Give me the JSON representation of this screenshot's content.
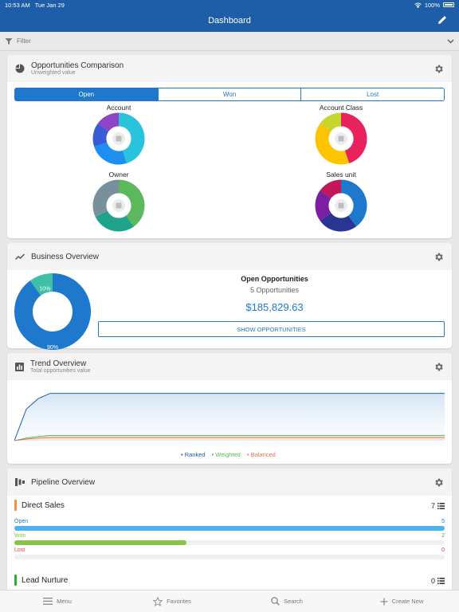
{
  "status": {
    "time": "10:53 AM",
    "date": "Tue Jan 29",
    "battery": "100%"
  },
  "nav": {
    "title": "Dashboard"
  },
  "filter": {
    "label": "Filter"
  },
  "opportunities": {
    "title": "Opportunities Comparison",
    "subtitle": "Unweighted value",
    "tabs": [
      "Open",
      "Won",
      "Lost"
    ],
    "selected_tab": "Open",
    "donuts": [
      {
        "label": "Account",
        "icon": "building-icon",
        "segments": [
          {
            "value": 45,
            "color": "#29c3dd"
          },
          {
            "value": 25,
            "color": "#1e8ef0"
          },
          {
            "value": 15,
            "color": "#3b5bd6"
          },
          {
            "value": 15,
            "color": "#8e44c6"
          }
        ]
      },
      {
        "label": "Account Class",
        "icon": "account-class-icon",
        "segments": [
          {
            "value": 45,
            "color": "#e8225c"
          },
          {
            "value": 40,
            "color": "#ffc400"
          },
          {
            "value": 15,
            "color": "#c6d62b"
          }
        ]
      },
      {
        "label": "Owner",
        "icon": "person-icon",
        "segments": [
          {
            "value": 40,
            "color": "#5cb85c"
          },
          {
            "value": 28,
            "color": "#1fa38a"
          },
          {
            "value": 32,
            "color": "#78909c"
          }
        ]
      },
      {
        "label": "Sales unit",
        "icon": "org-icon",
        "segments": [
          {
            "value": 40,
            "color": "#1e78cc"
          },
          {
            "value": 25,
            "color": "#283593"
          },
          {
            "value": 20,
            "color": "#7b1fa2"
          },
          {
            "value": 15,
            "color": "#c2185b"
          }
        ]
      }
    ]
  },
  "business": {
    "title": "Business Overview",
    "pie": {
      "segments": [
        {
          "value": 90,
          "label": "90%",
          "color": "#1e78cc"
        },
        {
          "value": 10,
          "label": "10%",
          "color": "#3fbfa8"
        }
      ]
    },
    "heading": "Open Opportunities",
    "count": "5 Opportunities",
    "amount": "$185,829.63",
    "button": "SHOW OPPORTUNITIES"
  },
  "trend": {
    "title": "Trend Overview",
    "subtitle": "Total opportunities value",
    "legend": [
      {
        "name": "Ranked",
        "color": "#1e5ea8"
      },
      {
        "name": "Weighted",
        "color": "#5cb85c"
      },
      {
        "name": "Balanced",
        "color": "#e8735a"
      }
    ],
    "chart_data": {
      "type": "area",
      "x": [
        0,
        1,
        2,
        3,
        4,
        5,
        6,
        7,
        8,
        9,
        10,
        11,
        12,
        13,
        14,
        15,
        16,
        17,
        18,
        19,
        20,
        21,
        22,
        23,
        24,
        25,
        26,
        27,
        28,
        29,
        30,
        31,
        32,
        33,
        34,
        35,
        36
      ],
      "series": [
        {
          "name": "Ranked",
          "values": [
            0,
            6,
            8,
            9,
            9,
            9,
            9,
            9,
            9,
            9,
            9,
            9,
            9,
            9,
            9,
            9,
            9,
            9,
            9,
            9,
            9,
            9,
            9,
            9,
            9,
            9,
            9,
            9,
            9,
            9,
            9,
            9,
            9,
            9,
            9,
            9,
            9
          ]
        },
        {
          "name": "Weighted",
          "values": [
            0,
            0.5,
            0.8,
            1,
            1,
            1,
            1,
            1,
            1,
            1,
            1,
            1,
            1,
            1,
            1,
            1,
            1,
            1,
            1,
            1,
            1,
            1,
            1,
            1,
            1,
            1,
            1,
            1,
            1,
            1,
            1,
            1,
            1,
            1,
            1,
            1,
            1
          ]
        },
        {
          "name": "Balanced",
          "values": [
            0,
            0.3,
            0.5,
            0.6,
            0.6,
            0.6,
            0.6,
            0.6,
            0.6,
            0.6,
            0.6,
            0.6,
            0.6,
            0.6,
            0.6,
            0.6,
            0.6,
            0.6,
            0.6,
            0.6,
            0.6,
            0.6,
            0.6,
            0.6,
            0.6,
            0.6,
            0.6,
            0.6,
            0.6,
            0.6,
            0.6,
            0.6,
            0.6,
            0.6,
            0.6,
            0.6,
            0.6
          ]
        }
      ]
    }
  },
  "pipeline": {
    "title": "Pipeline Overview",
    "groups": [
      {
        "name": "Direct Sales",
        "color": "#f0923c",
        "count": "7",
        "rows": [
          {
            "label": "Open",
            "value": "5",
            "fraction": 1.0,
            "color": "#4eb2f0",
            "label_color": "#1e78cc"
          },
          {
            "label": "Won",
            "value": "2",
            "fraction": 0.4,
            "color": "#8bc34a",
            "label_color": "#8bc34a"
          },
          {
            "label": "Lost",
            "value": "0",
            "fraction": 0.0,
            "color": "#e04040",
            "label_color": "#e04040"
          }
        ]
      },
      {
        "name": "Lead Nurture",
        "color": "#3aa63a",
        "count": "0",
        "rows": []
      }
    ]
  },
  "tabbar": [
    {
      "label": "Menu",
      "icon": "menu-icon"
    },
    {
      "label": "Favorites",
      "icon": "star-icon"
    },
    {
      "label": "Search",
      "icon": "search-icon"
    },
    {
      "label": "Create New",
      "icon": "plus-icon"
    }
  ]
}
